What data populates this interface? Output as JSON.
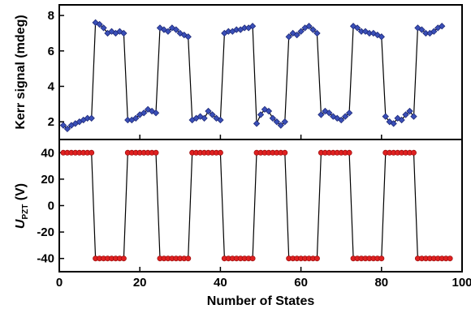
{
  "chart_data": [
    {
      "type": "scatter",
      "name": "kerr-panel",
      "ylabel": "Kerr signal (mdeg)",
      "xlim": [
        0,
        100
      ],
      "ylim": [
        1.0,
        8.6
      ],
      "xticks": [
        0,
        20,
        40,
        60,
        80,
        100
      ],
      "yticks": [
        2,
        4,
        6,
        8
      ],
      "marker_color": "#3a4fb8",
      "marker_edge": "#1f2a78",
      "line_color": "#000000",
      "x": [
        1,
        2,
        3,
        4,
        5,
        6,
        7,
        8,
        9,
        10,
        11,
        12,
        13,
        14,
        15,
        16,
        17,
        18,
        19,
        20,
        21,
        22,
        23,
        24,
        25,
        26,
        27,
        28,
        29,
        30,
        31,
        32,
        33,
        34,
        35,
        36,
        37,
        38,
        39,
        40,
        41,
        42,
        43,
        44,
        45,
        46,
        47,
        48,
        49,
        50,
        51,
        52,
        53,
        54,
        55,
        56,
        57,
        58,
        59,
        60,
        61,
        62,
        63,
        64,
        65,
        66,
        67,
        68,
        69,
        70,
        71,
        72,
        73,
        74,
        75,
        76,
        77,
        78,
        79,
        80,
        81,
        82,
        83,
        84,
        85,
        86,
        87,
        88,
        89,
        90,
        91,
        92,
        93,
        94,
        95
      ],
      "y": [
        1.8,
        1.6,
        1.8,
        1.9,
        2.0,
        2.1,
        2.2,
        2.2,
        7.6,
        7.5,
        7.3,
        7.0,
        7.1,
        7.0,
        7.1,
        7.0,
        2.1,
        2.1,
        2.2,
        2.4,
        2.5,
        2.7,
        2.6,
        2.5,
        7.3,
        7.2,
        7.1,
        7.3,
        7.2,
        7.0,
        6.9,
        6.8,
        2.1,
        2.2,
        2.3,
        2.2,
        2.6,
        2.4,
        2.2,
        2.1,
        7.0,
        7.1,
        7.1,
        7.2,
        7.2,
        7.3,
        7.3,
        7.4,
        1.9,
        2.4,
        2.7,
        2.6,
        2.2,
        2.0,
        1.8,
        2.0,
        6.8,
        7.0,
        6.9,
        7.1,
        7.3,
        7.4,
        7.2,
        7.0,
        2.4,
        2.6,
        2.5,
        2.3,
        2.2,
        2.1,
        2.3,
        2.5,
        7.4,
        7.3,
        7.1,
        7.1,
        7.0,
        7.0,
        6.9,
        6.8,
        2.3,
        2.0,
        1.9,
        2.2,
        2.1,
        2.4,
        2.6,
        2.3,
        7.3,
        7.2,
        7.0,
        7.0,
        7.1,
        7.3,
        7.4
      ]
    },
    {
      "type": "scatter",
      "name": "voltage-panel",
      "xlabel": "Number of States",
      "ylabel_main": "U",
      "ylabel_sub": "PZT",
      "ylabel_unit": " (V)",
      "xlim": [
        0,
        100
      ],
      "ylim": [
        -50,
        50
      ],
      "xticks": [
        0,
        20,
        40,
        60,
        80,
        100
      ],
      "yticks": [
        40,
        20,
        0,
        -20,
        -40
      ],
      "marker_color": "#e02020",
      "marker_edge": "#a01010",
      "line_color": "#000000",
      "x": [
        1,
        2,
        3,
        4,
        5,
        6,
        7,
        8,
        9,
        10,
        11,
        12,
        13,
        14,
        15,
        16,
        17,
        18,
        19,
        20,
        21,
        22,
        23,
        24,
        25,
        26,
        27,
        28,
        29,
        30,
        31,
        32,
        33,
        34,
        35,
        36,
        37,
        38,
        39,
        40,
        41,
        42,
        43,
        44,
        45,
        46,
        47,
        48,
        49,
        50,
        51,
        52,
        53,
        54,
        55,
        56,
        57,
        58,
        59,
        60,
        61,
        62,
        63,
        64,
        65,
        66,
        67,
        68,
        69,
        70,
        71,
        72,
        73,
        74,
        75,
        76,
        77,
        78,
        79,
        80,
        81,
        82,
        83,
        84,
        85,
        86,
        87,
        88,
        89,
        90,
        91,
        92,
        93,
        94,
        95,
        96,
        97
      ],
      "y": [
        40,
        40,
        40,
        40,
        40,
        40,
        40,
        40,
        -40,
        -40,
        -40,
        -40,
        -40,
        -40,
        -40,
        -40,
        40,
        40,
        40,
        40,
        40,
        40,
        40,
        40,
        -40,
        -40,
        -40,
        -40,
        -40,
        -40,
        -40,
        -40,
        40,
        40,
        40,
        40,
        40,
        40,
        40,
        40,
        -40,
        -40,
        -40,
        -40,
        -40,
        -40,
        -40,
        -40,
        40,
        40,
        40,
        40,
        40,
        40,
        40,
        40,
        -40,
        -40,
        -40,
        -40,
        -40,
        -40,
        -40,
        -40,
        40,
        40,
        40,
        40,
        40,
        40,
        40,
        40,
        -40,
        -40,
        -40,
        -40,
        -40,
        -40,
        -40,
        -40,
        40,
        40,
        40,
        40,
        40,
        40,
        40,
        40,
        -40,
        -40,
        -40,
        -40,
        -40,
        -40,
        -40,
        -40,
        -40
      ]
    }
  ]
}
